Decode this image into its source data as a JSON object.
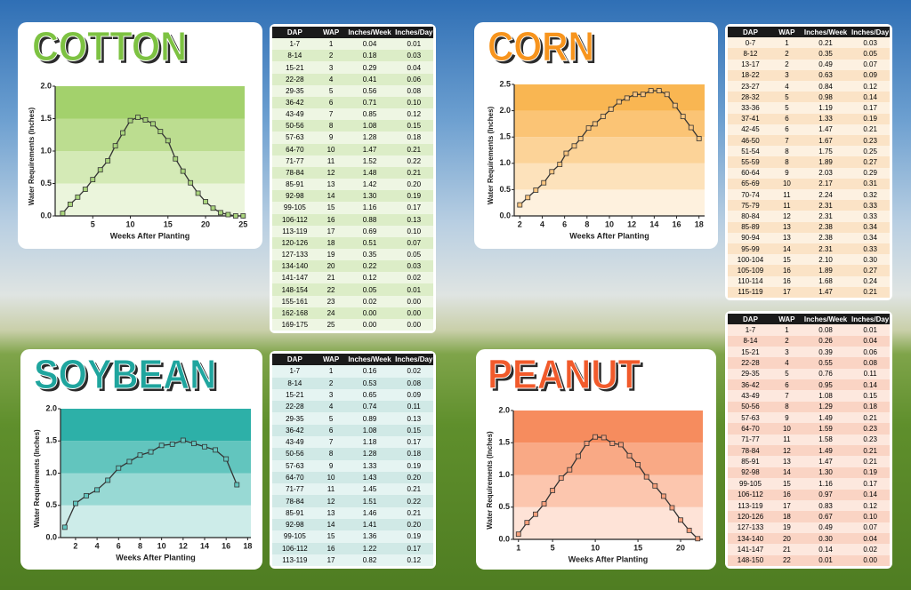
{
  "chart_data": [
    {
      "type": "line",
      "title": "COTTON",
      "title_color": "#7dc242",
      "x_label": "Weeks After Planting",
      "y_label": "Water Requirements (Inches)",
      "color": "#333333",
      "marker_color": "#a9d47c",
      "bands": [
        "#ebf5dc",
        "#d4eab6",
        "#bcdd90",
        "#a3d16c"
      ],
      "x": [
        1,
        2,
        3,
        4,
        5,
        6,
        7,
        8,
        9,
        10,
        11,
        12,
        13,
        14,
        15,
        16,
        17,
        18,
        19,
        20,
        21,
        22,
        23,
        24,
        25
      ],
      "values": [
        0.04,
        0.18,
        0.29,
        0.41,
        0.56,
        0.71,
        0.85,
        1.08,
        1.28,
        1.47,
        1.52,
        1.48,
        1.42,
        1.3,
        1.16,
        0.88,
        0.69,
        0.51,
        0.35,
        0.22,
        0.12,
        0.05,
        0.02,
        0.0,
        0.0
      ],
      "xlim": [
        0,
        25.2
      ],
      "ylim": [
        0,
        2
      ],
      "xticks": [
        5,
        10,
        15,
        20,
        25
      ],
      "yticks": [
        {
          "value": 0,
          "label": "0.0"
        },
        0.5,
        {
          "value": 1,
          "label": "1.0"
        },
        1.5,
        {
          "value": 2,
          "label": "2.0"
        }
      ]
    },
    {
      "type": "line",
      "title": "CORN",
      "title_color": "#f7941d",
      "x_label": "Weeks After Planting",
      "y_label": "Water Requirements (Inches)",
      "color": "#333333",
      "marker_color": "#fbc680",
      "bands": [
        "#fef1de",
        "#fde2bb",
        "#fcd398",
        "#fbc475",
        "#f9b652"
      ],
      "x": [
        2,
        2.71,
        3.43,
        4.14,
        4.86,
        5.57,
        6.14,
        6.86,
        7.43,
        8.14,
        8.71,
        9.43,
        10.14,
        10.86,
        11.57,
        12.29,
        13,
        13.71,
        14.43,
        15.14,
        15.86,
        16.57,
        17.29,
        18
      ],
      "values": [
        0.21,
        0.35,
        0.49,
        0.63,
        0.84,
        0.98,
        1.19,
        1.33,
        1.47,
        1.67,
        1.75,
        1.89,
        2.03,
        2.17,
        2.24,
        2.31,
        2.31,
        2.38,
        2.38,
        2.31,
        2.1,
        1.89,
        1.68,
        1.47
      ],
      "xlim": [
        1.5,
        18.5
      ],
      "ylim": [
        0,
        2.5
      ],
      "xticks": [
        2,
        4,
        6,
        8,
        10,
        12,
        14,
        16,
        18
      ],
      "yticks": [
        {
          "value": 0,
          "label": "0.0"
        },
        0.5,
        {
          "value": 1,
          "label": "1.0"
        },
        1.5,
        {
          "value": 2,
          "label": "2.0"
        },
        2.5
      ]
    },
    {
      "type": "line",
      "title": "SOYBEAN",
      "title_color": "#1fa59e",
      "x_label": "Weeks After Planting",
      "y_label": "Water Requirements (Inches)",
      "color": "#333333",
      "marker_color": "#62c6bf",
      "bands": [
        "#cdece9",
        "#98d9d4",
        "#62c5be",
        "#2db0a8"
      ],
      "x": [
        1,
        2,
        3,
        4,
        5,
        6,
        7,
        8,
        9,
        10,
        11,
        12,
        13,
        14,
        15,
        16,
        17
      ],
      "values": [
        0.16,
        0.53,
        0.65,
        0.74,
        0.89,
        1.08,
        1.18,
        1.28,
        1.33,
        1.43,
        1.45,
        1.51,
        1.46,
        1.41,
        1.36,
        1.22,
        0.82
      ],
      "xlim": [
        0.6,
        18.3
      ],
      "ylim": [
        0,
        2
      ],
      "xticks": [
        2,
        4,
        6,
        8,
        10,
        12,
        14,
        16,
        18
      ],
      "yticks": [
        {
          "value": 0,
          "label": "0.0"
        },
        0.5,
        {
          "value": 1,
          "label": "1.0"
        },
        1.5,
        {
          "value": 2,
          "label": "2.0"
        }
      ]
    },
    {
      "type": "line",
      "title": "PEANUT",
      "title_color": "#f15a2b",
      "x_label": "Weeks After Planting",
      "y_label": "Water Requirements (Inches)",
      "color": "#333333",
      "marker_color": "#f7a07c",
      "bands": [
        "#fee3d7",
        "#fcc6ae",
        "#f9a985",
        "#f68c5e"
      ],
      "x": [
        1,
        2,
        3,
        4,
        5,
        6,
        7,
        8,
        9,
        10,
        11,
        12,
        13,
        14,
        15,
        16,
        17,
        18,
        19,
        20,
        21,
        22
      ],
      "values": [
        0.08,
        0.26,
        0.39,
        0.55,
        0.76,
        0.95,
        1.08,
        1.29,
        1.49,
        1.59,
        1.58,
        1.49,
        1.47,
        1.3,
        1.16,
        0.97,
        0.83,
        0.67,
        0.49,
        0.3,
        0.14,
        0.01
      ],
      "xlim": [
        0.4,
        22.6
      ],
      "ylim": [
        0,
        2
      ],
      "xticks": [
        1,
        5,
        10,
        15,
        20
      ],
      "yticks": [
        {
          "value": 0,
          "label": "0.0"
        },
        0.5,
        {
          "value": 1,
          "label": "1.0"
        },
        1.5,
        {
          "value": 2,
          "label": "2.0"
        }
      ]
    }
  ],
  "tables": [
    {
      "row_colors": [
        "#eef6e3",
        "#dcedc7"
      ],
      "columns": [
        "DAP",
        "WAP",
        "Inches/Week",
        "Inches/Day"
      ],
      "rows": [
        [
          "1-7",
          "1",
          "0.04",
          "0.01"
        ],
        [
          "8-14",
          "2",
          "0.18",
          "0.03"
        ],
        [
          "15-21",
          "3",
          "0.29",
          "0.04"
        ],
        [
          "22-28",
          "4",
          "0.41",
          "0.06"
        ],
        [
          "29-35",
          "5",
          "0.56",
          "0.08"
        ],
        [
          "36-42",
          "6",
          "0.71",
          "0.10"
        ],
        [
          "43-49",
          "7",
          "0.85",
          "0.12"
        ],
        [
          "50-56",
          "8",
          "1.08",
          "0.15"
        ],
        [
          "57-63",
          "9",
          "1.28",
          "0.18"
        ],
        [
          "64-70",
          "10",
          "1.47",
          "0.21"
        ],
        [
          "71-77",
          "11",
          "1.52",
          "0.22"
        ],
        [
          "78-84",
          "12",
          "1.48",
          "0.21"
        ],
        [
          "85-91",
          "13",
          "1.42",
          "0.20"
        ],
        [
          "92-98",
          "14",
          "1.30",
          "0.19"
        ],
        [
          "99-105",
          "15",
          "1.16",
          "0.17"
        ],
        [
          "106-112",
          "16",
          "0.88",
          "0.13"
        ],
        [
          "113-119",
          "17",
          "0.69",
          "0.10"
        ],
        [
          "120-126",
          "18",
          "0.51",
          "0.07"
        ],
        [
          "127-133",
          "19",
          "0.35",
          "0.05"
        ],
        [
          "134-140",
          "20",
          "0.22",
          "0.03"
        ],
        [
          "141-147",
          "21",
          "0.12",
          "0.02"
        ],
        [
          "148-154",
          "22",
          "0.05",
          "0.01"
        ],
        [
          "155-161",
          "23",
          "0.02",
          "0.00"
        ],
        [
          "162-168",
          "24",
          "0.00",
          "0.00"
        ],
        [
          "169-175",
          "25",
          "0.00",
          "0.00"
        ]
      ]
    },
    {
      "row_colors": [
        "#fdf1e1",
        "#fbe3c6"
      ],
      "columns": [
        "DAP",
        "WAP",
        "Inches/Week",
        "Inches/Day"
      ],
      "rows": [
        [
          "0-7",
          "1",
          "0.21",
          "0.03"
        ],
        [
          "8-12",
          "2",
          "0.35",
          "0.05"
        ],
        [
          "13-17",
          "2",
          "0.49",
          "0.07"
        ],
        [
          "18-22",
          "3",
          "0.63",
          "0.09"
        ],
        [
          "23-27",
          "4",
          "0.84",
          "0.12"
        ],
        [
          "28-32",
          "5",
          "0.98",
          "0.14"
        ],
        [
          "33-36",
          "5",
          "1.19",
          "0.17"
        ],
        [
          "37-41",
          "6",
          "1.33",
          "0.19"
        ],
        [
          "42-45",
          "6",
          "1.47",
          "0.21"
        ],
        [
          "46-50",
          "7",
          "1.67",
          "0.23"
        ],
        [
          "51-54",
          "8",
          "1.75",
          "0.25"
        ],
        [
          "55-59",
          "8",
          "1.89",
          "0.27"
        ],
        [
          "60-64",
          "9",
          "2.03",
          "0.29"
        ],
        [
          "65-69",
          "10",
          "2.17",
          "0.31"
        ],
        [
          "70-74",
          "11",
          "2.24",
          "0.32"
        ],
        [
          "75-79",
          "11",
          "2.31",
          "0.33"
        ],
        [
          "80-84",
          "12",
          "2.31",
          "0.33"
        ],
        [
          "85-89",
          "13",
          "2.38",
          "0.34"
        ],
        [
          "90-94",
          "13",
          "2.38",
          "0.34"
        ],
        [
          "95-99",
          "14",
          "2.31",
          "0.33"
        ],
        [
          "100-104",
          "15",
          "2.10",
          "0.30"
        ],
        [
          "105-109",
          "16",
          "1.89",
          "0.27"
        ],
        [
          "110-114",
          "16",
          "1.68",
          "0.24"
        ],
        [
          "115-119",
          "17",
          "1.47",
          "0.21"
        ]
      ]
    },
    {
      "row_colors": [
        "#e5f4f2",
        "#d0e9e6"
      ],
      "columns": [
        "DAP",
        "WAP",
        "Inches/Week",
        "Inches/Day"
      ],
      "rows": [
        [
          "1-7",
          "1",
          "0.16",
          "0.02"
        ],
        [
          "8-14",
          "2",
          "0.53",
          "0.08"
        ],
        [
          "15-21",
          "3",
          "0.65",
          "0.09"
        ],
        [
          "22-28",
          "4",
          "0.74",
          "0.11"
        ],
        [
          "29-35",
          "5",
          "0.89",
          "0.13"
        ],
        [
          "36-42",
          "6",
          "1.08",
          "0.15"
        ],
        [
          "43-49",
          "7",
          "1.18",
          "0.17"
        ],
        [
          "50-56",
          "8",
          "1.28",
          "0.18"
        ],
        [
          "57-63",
          "9",
          "1.33",
          "0.19"
        ],
        [
          "64-70",
          "10",
          "1.43",
          "0.20"
        ],
        [
          "71-77",
          "11",
          "1.45",
          "0.21"
        ],
        [
          "78-84",
          "12",
          "1.51",
          "0.22"
        ],
        [
          "85-91",
          "13",
          "1.46",
          "0.21"
        ],
        [
          "92-98",
          "14",
          "1.41",
          "0.20"
        ],
        [
          "99-105",
          "15",
          "1.36",
          "0.19"
        ],
        [
          "106-112",
          "16",
          "1.22",
          "0.17"
        ],
        [
          "113-119",
          "17",
          "0.82",
          "0.12"
        ]
      ]
    },
    {
      "row_colors": [
        "#fde8de",
        "#fad4c4"
      ],
      "columns": [
        "DAP",
        "WAP",
        "Inches/Week",
        "Inches/Day"
      ],
      "rows": [
        [
          "1-7",
          "1",
          "0.08",
          "0.01"
        ],
        [
          "8-14",
          "2",
          "0.26",
          "0.04"
        ],
        [
          "15-21",
          "3",
          "0.39",
          "0.06"
        ],
        [
          "22-28",
          "4",
          "0.55",
          "0.08"
        ],
        [
          "29-35",
          "5",
          "0.76",
          "0.11"
        ],
        [
          "36-42",
          "6",
          "0.95",
          "0.14"
        ],
        [
          "43-49",
          "7",
          "1.08",
          "0.15"
        ],
        [
          "50-56",
          "8",
          "1.29",
          "0.18"
        ],
        [
          "57-63",
          "9",
          "1.49",
          "0.21"
        ],
        [
          "64-70",
          "10",
          "1.59",
          "0.23"
        ],
        [
          "71-77",
          "11",
          "1.58",
          "0.23"
        ],
        [
          "78-84",
          "12",
          "1.49",
          "0.21"
        ],
        [
          "85-91",
          "13",
          "1.47",
          "0.21"
        ],
        [
          "92-98",
          "14",
          "1.30",
          "0.19"
        ],
        [
          "99-105",
          "15",
          "1.16",
          "0.17"
        ],
        [
          "106-112",
          "16",
          "0.97",
          "0.14"
        ],
        [
          "113-119",
          "17",
          "0.83",
          "0.12"
        ],
        [
          "120-126",
          "18",
          "0.67",
          "0.10"
        ],
        [
          "127-133",
          "19",
          "0.49",
          "0.07"
        ],
        [
          "134-140",
          "20",
          "0.30",
          "0.04"
        ],
        [
          "141-147",
          "21",
          "0.14",
          "0.02"
        ],
        [
          "148-150",
          "22",
          "0.01",
          "0.00"
        ]
      ]
    }
  ]
}
